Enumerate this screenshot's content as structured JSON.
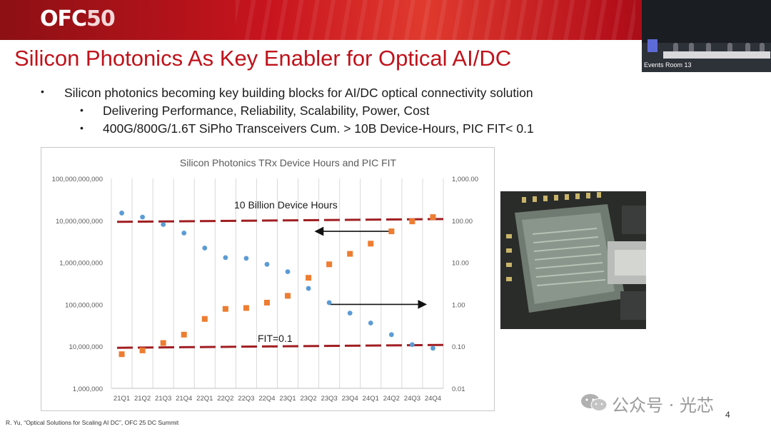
{
  "header": {
    "logo_text": "OFC",
    "logo_num": "50",
    "video_label": "Events Room 13"
  },
  "slide": {
    "title": "Silicon Photonics As Key Enabler for Optical AI/DC",
    "bullets": [
      {
        "text": "Silicon photonics becoming key building blocks for AI/DC optical connectivity solution",
        "marker": "•"
      },
      {
        "text": "Delivering Performance, Reliability, Scalability, Power, Cost",
        "marker": "•"
      },
      {
        "text": "400G/800G/1.6T SiPho Transceivers Cum. > 10B Device-Hours, PIC FIT< 0.1",
        "marker": "•"
      }
    ],
    "footer": "R. Yu, “Optical Solutions for Scaling AI DC”, OFC 25 DC Summit",
    "page_number": "4",
    "watermark": "公众号 · 光芯"
  },
  "chart_data": {
    "type": "scatter",
    "title": "Silicon Photonics TRx Device Hours and PIC FIT",
    "categories": [
      "21Q1",
      "21Q2",
      "21Q3",
      "21Q4",
      "22Q1",
      "22Q2",
      "22Q3",
      "22Q4",
      "23Q1",
      "23Q2",
      "23Q3",
      "23Q4",
      "24Q1",
      "24Q2",
      "24Q3",
      "24Q4"
    ],
    "y_left": {
      "scale": "log",
      "ylim": [
        1000000,
        100000000000
      ],
      "tick_labels": [
        "1,000,000",
        "10,000,000",
        "100,000,000",
        "1,000,000,000",
        "10,000,000,000",
        "100,000,000,000"
      ]
    },
    "y_right": {
      "scale": "log",
      "ylim": [
        0.01,
        1000
      ],
      "tick_labels": [
        "0.01",
        "0.10",
        "1.00",
        "10.00",
        "100.00",
        "1,000.00"
      ]
    },
    "grid": "vertical",
    "series": [
      {
        "axis": "right",
        "color": "#5b9bd5",
        "marker": "circle",
        "values": [
          150,
          120,
          80,
          50,
          22,
          13,
          12.5,
          9,
          6,
          2.4,
          1.1,
          0.62,
          0.36,
          0.19,
          0.11,
          0.09
        ]
      },
      {
        "axis": "left",
        "color": "#ed7d31",
        "marker": "square",
        "values": [
          6500000,
          8000000,
          12000000,
          19000000,
          45000000,
          78000000,
          82000000,
          110000000,
          160000000,
          430000000,
          900000000,
          1600000000,
          2800000000,
          5500000000,
          9500000000,
          12000000000
        ]
      }
    ],
    "reference_lines": [
      {
        "label": "10 Billion Device Hours",
        "axis": "left",
        "value": 10000000000,
        "color": "#a01e22"
      },
      {
        "label": "FIT=0.1",
        "axis": "right",
        "value": 0.1,
        "color": "#a01e22"
      }
    ],
    "arrows": [
      {
        "direction": "left",
        "from_category": "24Q2",
        "to_category": "23Q2",
        "axis": "left",
        "value": 5500000000
      },
      {
        "direction": "right",
        "from_category": "23Q3",
        "to_category": "24Q4",
        "axis": "right",
        "value": 1.0
      }
    ]
  }
}
